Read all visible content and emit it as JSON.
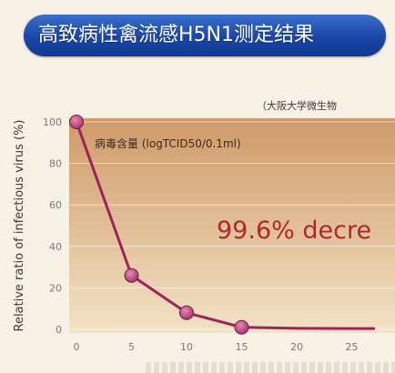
{
  "chart_data": {
    "type": "line",
    "title": "高致病性禽流感H5N1测定结果",
    "source_note": "（大阪大学微生物",
    "ylabel": "Relative ratio of infectious virus (%)",
    "series_label": "病毒含量 (logTCID50/0.1ml)",
    "annotation": "99.6% decre",
    "x_ticks": [
      "0",
      "5",
      "10",
      "15",
      "20",
      "25"
    ],
    "y_ticks": [
      "0",
      "20",
      "40",
      "60",
      "80",
      "100"
    ],
    "xlim": [
      0,
      27
    ],
    "ylim": [
      0,
      100
    ],
    "grid": true,
    "series": [
      {
        "x": [
          0,
          5,
          10,
          15,
          20,
          25,
          27
        ],
        "y": [
          100,
          26,
          8,
          1,
          0.5,
          0.4,
          0.4
        ]
      }
    ],
    "markers_x": [
      0,
      5,
      10,
      15
    ],
    "colors": {
      "line": "#9c2456",
      "marker": "#a83470",
      "band_top": "#cf9a68",
      "band_bottom": "#f3e2c6",
      "title_bg": "#1a45a8"
    }
  }
}
